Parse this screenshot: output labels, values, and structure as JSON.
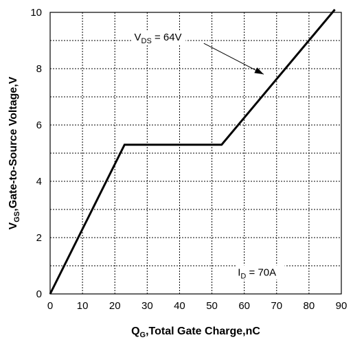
{
  "chart_data": {
    "type": "line",
    "title": "",
    "x_label": {
      "main": "Q",
      "sub": "G",
      "rest": ",Total Gate Charge,nC"
    },
    "y_label": {
      "main": "V",
      "sub": "GS",
      "rest": ",Gate-to-Source Voltage,V"
    },
    "xlim": [
      0,
      90
    ],
    "ylim": [
      0,
      10
    ],
    "x_ticks": [
      0,
      10,
      20,
      30,
      40,
      50,
      60,
      70,
      80,
      90
    ],
    "y_ticks": [
      0,
      2,
      4,
      6,
      8,
      10
    ],
    "y_minor_gridlines": [
      1,
      3,
      5,
      7,
      9
    ],
    "grid": true,
    "series": [
      {
        "x": [
          0,
          23,
          53,
          88
        ],
        "y": [
          0,
          5.3,
          5.3,
          10.1
        ]
      }
    ],
    "annotations": [
      {
        "main": "V",
        "sub": "DS",
        "rest": " = 64V",
        "text_at": [
          26,
          9.0
        ],
        "arrow_from": [
          47.5,
          8.9
        ],
        "arrow_to": [
          66,
          7.8
        ]
      },
      {
        "main": "I",
        "sub": "D",
        "rest": " = 70A",
        "text_at": [
          58,
          0.65
        ]
      }
    ]
  }
}
